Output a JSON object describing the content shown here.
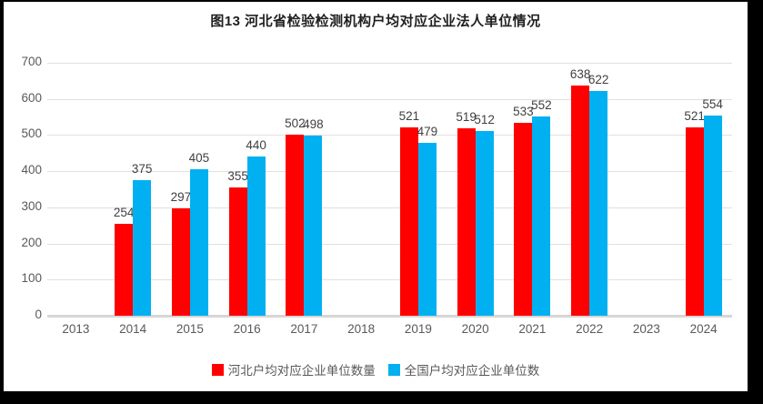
{
  "title": "图13 河北省检验检测机构户均对应企业法人单位情况",
  "chart_data": {
    "type": "bar",
    "categories": [
      "2013",
      "2014",
      "2015",
      "2016",
      "2017",
      "2018",
      "2019",
      "2020",
      "2021",
      "2022",
      "2023",
      "2024"
    ],
    "series": [
      {
        "name": "河北户均对应企业单位数量",
        "color": "#FF0000",
        "values": [
          null,
          254,
          297,
          355,
          502,
          null,
          521,
          519,
          533,
          638,
          null,
          521
        ]
      },
      {
        "name": "全国户均对应企业单位数",
        "color": "#00B0F0",
        "values": [
          null,
          375,
          405,
          440,
          498,
          null,
          479,
          512,
          552,
          622,
          null,
          554
        ]
      }
    ],
    "ylim": [
      0,
      700
    ],
    "yticks": [
      0,
      100,
      200,
      300,
      400,
      500,
      600,
      700
    ],
    "xlabel": "",
    "ylabel": "",
    "grid": true,
    "data_labels": true,
    "legend_position": "bottom"
  },
  "colors": {
    "frame": "#000000",
    "background": "#FFFFFF",
    "gridline": "#E0E0E0",
    "axis_line": "#D6D6D6",
    "tick_text": "#595959",
    "data_label_text": "#404040",
    "title_text": "#1F1F1F",
    "series_hebei": "#FF0000",
    "series_national": "#00B0F0"
  }
}
